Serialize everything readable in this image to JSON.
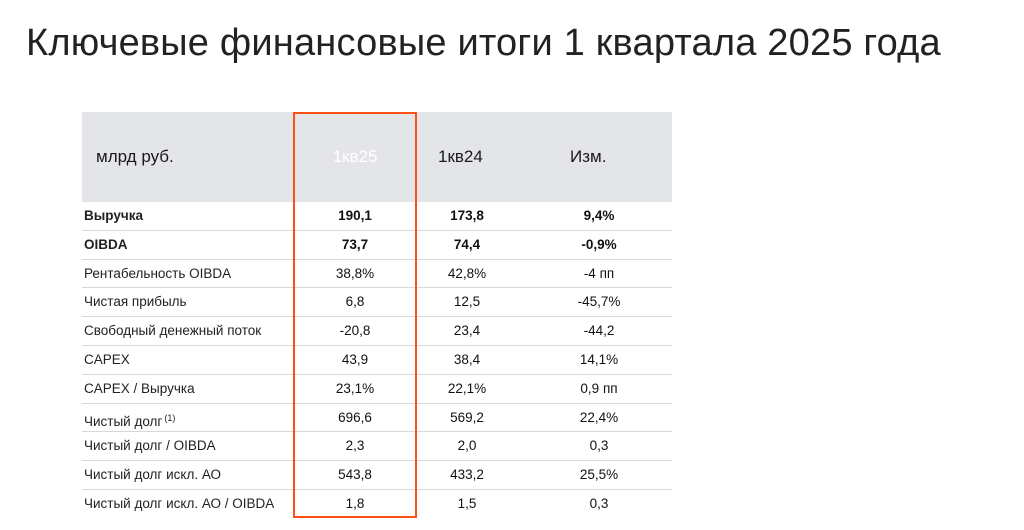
{
  "title": "Ключевые финансовые итоги 1 квартала 2025 года",
  "header": {
    "unit_label": "млрд руб.",
    "col1": "1кв25",
    "col2": "1кв24",
    "col3": "Изм."
  },
  "accent_color": "#fb5016",
  "rows": [
    {
      "label": "Выручка",
      "note": "",
      "v1": "190,1",
      "v2": "173,8",
      "v3": "9,4%",
      "bold": true
    },
    {
      "label": "OIBDA",
      "note": "",
      "v1": "73,7",
      "v2": "74,4",
      "v3": "-0,9%",
      "bold": true
    },
    {
      "label": "Рентабельность OIBDA",
      "note": "",
      "v1": "38,8%",
      "v2": "42,8%",
      "v3": "-4 пп",
      "bold": false
    },
    {
      "label": "Чистая прибыль",
      "note": "",
      "v1": "6,8",
      "v2": "12,5",
      "v3": "-45,7%",
      "bold": false
    },
    {
      "label": "Свободный денежный поток",
      "note": "",
      "v1": "-20,8",
      "v2": "23,4",
      "v3": "-44,2",
      "bold": false
    },
    {
      "label": "CAPEX",
      "note": "",
      "v1": "43,9",
      "v2": "38,4",
      "v3": "14,1%",
      "bold": false
    },
    {
      "label": "CAPEX / Выручка",
      "note": "",
      "v1": "23,1%",
      "v2": "22,1%",
      "v3": "0,9 пп",
      "bold": false
    },
    {
      "label": "Чистый долг",
      "note": "(1)",
      "v1": "696,6",
      "v2": "569,2",
      "v3": "22,4%",
      "bold": false
    },
    {
      "label": "Чистый долг / OIBDA",
      "note": "",
      "v1": "2,3",
      "v2": "2,0",
      "v3": "0,3",
      "bold": false
    },
    {
      "label": "Чистый долг искл. АО",
      "note": "",
      "v1": "543,8",
      "v2": "433,2",
      "v3": "25,5%",
      "bold": false
    },
    {
      "label": "Чистый долг искл. АО / OIBDA",
      "note": "",
      "v1": "1,8",
      "v2": "1,5",
      "v3": "0,3",
      "bold": false
    }
  ]
}
